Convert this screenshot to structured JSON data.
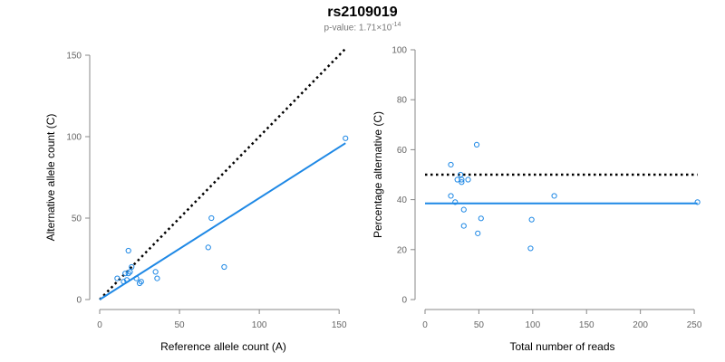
{
  "title": "rs2109019",
  "subtitle": {
    "prefix": "p-value: 1.71×10",
    "exponent": "-14"
  },
  "colors": {
    "points": "#1e88e5",
    "fit_line": "#1e88e5",
    "reference_line": "#000000",
    "axis": "#888888"
  },
  "chart_data": [
    {
      "type": "scatter",
      "xlabel": "Reference allele count (A)",
      "ylabel": "Alternative allele count (C)",
      "xlim": [
        0,
        155
      ],
      "ylim": [
        0,
        150
      ],
      "xticks": [
        0,
        50,
        100,
        150
      ],
      "yticks": [
        0,
        50,
        100,
        150
      ],
      "points": {
        "x": [
          11,
          15,
          17,
          18,
          18,
          16,
          19,
          20,
          23,
          25,
          26,
          35,
          36,
          68,
          70,
          78,
          154
        ],
        "y": [
          13,
          11,
          12,
          16,
          30,
          16,
          17,
          20,
          13,
          10,
          11,
          17,
          13,
          32,
          50,
          20,
          99
        ]
      },
      "fit_line": {
        "x": [
          0,
          154
        ],
        "y": [
          0,
          96
        ]
      },
      "reference_line": {
        "x": [
          0,
          154
        ],
        "y": [
          0,
          154
        ]
      }
    },
    {
      "type": "scatter",
      "xlabel": "Total number of reads",
      "ylabel": "Percentage alternative (C)",
      "xlim": [
        0,
        255
      ],
      "ylim": [
        0,
        100
      ],
      "xticks": [
        0,
        50,
        100,
        150,
        200,
        250
      ],
      "yticks": [
        0,
        20,
        40,
        60,
        80,
        100
      ],
      "points": {
        "x": [
          24,
          24,
          28,
          30,
          33,
          34,
          34,
          36,
          36,
          40,
          48,
          49,
          52,
          98,
          99,
          120,
          253
        ],
        "y": [
          54,
          41.5,
          39,
          48,
          50,
          48,
          47,
          36,
          29.5,
          48,
          62,
          26.5,
          32.5,
          20.5,
          32,
          41.5,
          39
        ]
      },
      "fit_line": {
        "x": [
          0,
          253
        ],
        "y": [
          38.5,
          38.5
        ]
      },
      "reference_line": {
        "x": [
          0,
          253
        ],
        "y": [
          50,
          50
        ]
      }
    }
  ]
}
